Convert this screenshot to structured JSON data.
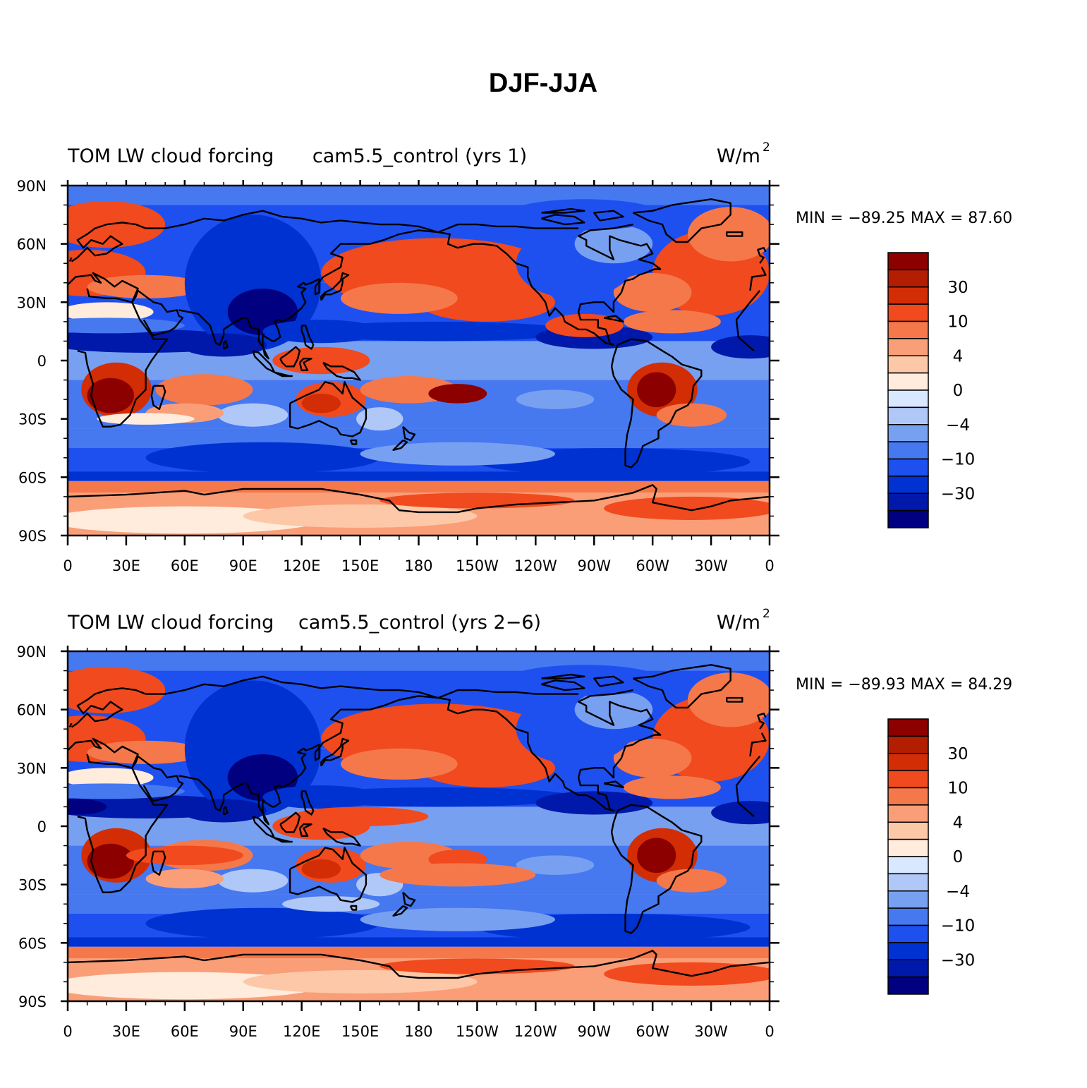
{
  "main_title": "DJF-JJA",
  "colors": {
    "palette": [
      "#000080",
      "#0019aa",
      "#0032d2",
      "#1e50f0",
      "#4678f0",
      "#78a0f0",
      "#b0c8f8",
      "#d8e8ff",
      "#ffecdc",
      "#fcc8a8",
      "#fa9e78",
      "#f5784a",
      "#f04a1e",
      "#d22d05",
      "#b41e00",
      "#8c0000"
    ],
    "land_outline": "#000000"
  },
  "panels": [
    {
      "left_title": "TOM LW cloud forcing",
      "center_title": "cam5.5_control (yrs 1)",
      "units": "W/m",
      "units_sup": "2",
      "stats": "MIN = −89.25 MAX =  87.60",
      "min": -89.25,
      "max": 87.6
    },
    {
      "left_title": "TOM LW cloud forcing",
      "center_title": "cam5.5_control (yrs 2−6)",
      "units": "W/m",
      "units_sup": "2",
      "stats": "MIN = −89.93 MAX =  84.29",
      "min": -89.93,
      "max": 84.29
    }
  ],
  "lat_labels": [
    "90N",
    "60N",
    "30N",
    "0",
    "30S",
    "60S",
    "90S"
  ],
  "lon_labels": [
    "0",
    "30E",
    "60E",
    "90E",
    "120E",
    "150E",
    "180",
    "150W",
    "120W",
    "90W",
    "60W",
    "30W",
    "0"
  ],
  "colorbar_labels": [
    "30",
    "10",
    "4",
    "0",
    "−4",
    "−10",
    "−30"
  ]
}
